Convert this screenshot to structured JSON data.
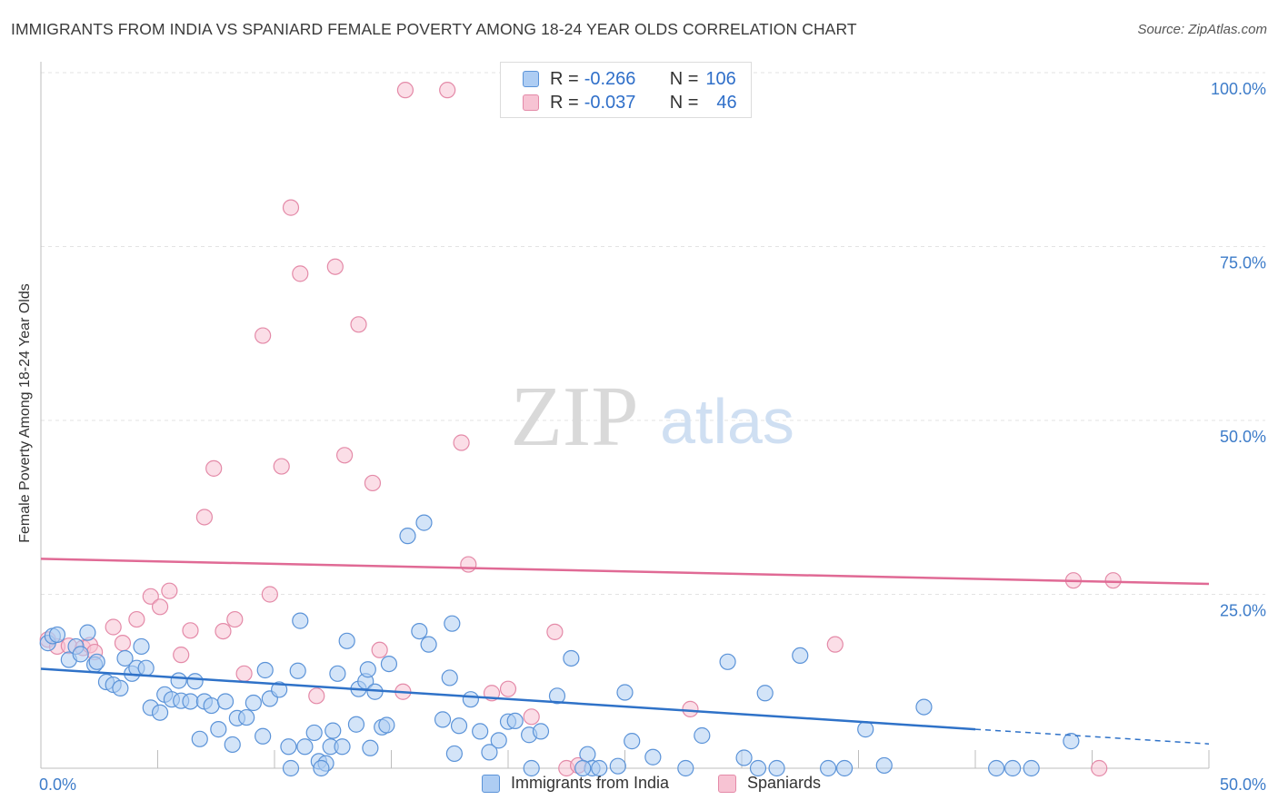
{
  "header": {
    "title": "IMMIGRANTS FROM INDIA VS SPANIARD FEMALE POVERTY AMONG 18-24 YEAR OLDS CORRELATION CHART",
    "source": "Source: ZipAtlas.com"
  },
  "watermark": {
    "zip": "ZIP",
    "atlas": "atlas"
  },
  "legend": {
    "rows": [
      {
        "r_label": "R =",
        "r_value": "-0.266",
        "n_label": "N =",
        "n_value": "106"
      },
      {
        "r_label": "R =",
        "r_value": "-0.037",
        "n_label": "N =",
        "n_value": "46"
      }
    ]
  },
  "colors": {
    "india_fill": "#aecdf3",
    "india_stroke": "#5b93d8",
    "india_line": "#2f72c8",
    "spain_fill": "#f7c3d3",
    "spain_stroke": "#e48aa8",
    "spain_line": "#e06a95",
    "tick_text": "#3d7cc9",
    "grid": "#e3e3e3"
  },
  "chart_data": {
    "type": "scatter",
    "title": "IMMIGRANTS FROM INDIA VS SPANIARD FEMALE POVERTY AMONG 18-24 YEAR OLDS CORRELATION CHART",
    "xlabel": "",
    "ylabel": "Female Poverty Among 18-24 Year Olds",
    "xlim": [
      0,
      50
    ],
    "ylim": [
      0,
      100
    ],
    "x_tick_labels": [
      "0.0%",
      "50.0%"
    ],
    "y_ticks": [
      25,
      50,
      75,
      100
    ],
    "y_tick_labels": [
      "25.0%",
      "50.0%",
      "75.0%",
      "100.0%"
    ],
    "grid": true,
    "legend_position": "top-center",
    "series": [
      {
        "name": "Immigrants from India",
        "R": -0.266,
        "N": 106,
        "trend": {
          "x0": 0,
          "y0": 14.3,
          "x1": 40,
          "y1": 5.6,
          "dashed_to_x": 50,
          "dashed_to_y": 3.5
        },
        "points": [
          [
            0.3,
            18
          ],
          [
            0.5,
            19
          ],
          [
            0.7,
            19.2
          ],
          [
            1.2,
            15.6
          ],
          [
            1.5,
            17.5
          ],
          [
            1.7,
            16.4
          ],
          [
            2.0,
            19.5
          ],
          [
            2.3,
            14.9
          ],
          [
            2.4,
            15.3
          ],
          [
            2.8,
            12.4
          ],
          [
            3.1,
            12.0
          ],
          [
            3.4,
            11.5
          ],
          [
            3.6,
            15.8
          ],
          [
            3.9,
            13.6
          ],
          [
            4.1,
            14.4
          ],
          [
            4.3,
            17.5
          ],
          [
            4.5,
            14.4
          ],
          [
            4.7,
            8.7
          ],
          [
            5.1,
            8.0
          ],
          [
            5.3,
            10.6
          ],
          [
            5.6,
            9.9
          ],
          [
            5.9,
            12.6
          ],
          [
            6.0,
            9.7
          ],
          [
            6.4,
            9.6
          ],
          [
            6.6,
            12.5
          ],
          [
            6.8,
            4.2
          ],
          [
            7.0,
            9.6
          ],
          [
            7.3,
            9.0
          ],
          [
            7.6,
            5.6
          ],
          [
            7.9,
            9.6
          ],
          [
            8.2,
            3.4
          ],
          [
            8.4,
            7.2
          ],
          [
            8.8,
            7.3
          ],
          [
            9.1,
            9.4
          ],
          [
            9.5,
            4.6
          ],
          [
            9.6,
            14.1
          ],
          [
            9.8,
            10.0
          ],
          [
            10.2,
            11.3
          ],
          [
            10.6,
            3.1
          ],
          [
            11.0,
            14.0
          ],
          [
            11.1,
            21.2
          ],
          [
            11.3,
            3.1
          ],
          [
            11.7,
            5.1
          ],
          [
            11.9,
            1.0
          ],
          [
            12.2,
            0.7
          ],
          [
            12.4,
            3.1
          ],
          [
            12.5,
            5.4
          ],
          [
            12.7,
            13.6
          ],
          [
            12.9,
            3.1
          ],
          [
            13.1,
            18.3
          ],
          [
            13.5,
            6.3
          ],
          [
            13.6,
            11.4
          ],
          [
            13.9,
            12.5
          ],
          [
            14.0,
            14.2
          ],
          [
            14.1,
            2.9
          ],
          [
            14.3,
            11.0
          ],
          [
            14.6,
            5.9
          ],
          [
            14.8,
            6.2
          ],
          [
            14.9,
            15.0
          ],
          [
            15.7,
            33.4
          ],
          [
            16.2,
            19.7
          ],
          [
            16.4,
            35.3
          ],
          [
            16.6,
            17.8
          ],
          [
            17.2,
            7.0
          ],
          [
            17.5,
            13.0
          ],
          [
            17.6,
            20.8
          ],
          [
            17.9,
            6.1
          ],
          [
            18.4,
            9.9
          ],
          [
            18.8,
            5.3
          ],
          [
            19.2,
            2.3
          ],
          [
            19.6,
            4.0
          ],
          [
            20.0,
            6.7
          ],
          [
            20.3,
            6.8
          ],
          [
            20.9,
            4.8
          ],
          [
            21.4,
            5.3
          ],
          [
            22.1,
            10.4
          ],
          [
            22.7,
            15.8
          ],
          [
            23.4,
            2.0
          ],
          [
            23.6,
            -0.3
          ],
          [
            23.9,
            -3.5
          ],
          [
            24.7,
            0.3
          ],
          [
            25.0,
            10.9
          ],
          [
            25.3,
            3.9
          ],
          [
            26.2,
            1.6
          ],
          [
            27.6,
            -4.2
          ],
          [
            28.3,
            4.7
          ],
          [
            29.4,
            15.3
          ],
          [
            30.1,
            1.5
          ],
          [
            30.7,
            -0.2
          ],
          [
            31.0,
            10.8
          ],
          [
            31.5,
            -4.4
          ],
          [
            32.5,
            16.2
          ],
          [
            33.7,
            -3.9
          ],
          [
            35.3,
            5.6
          ],
          [
            36.1,
            0.4
          ],
          [
            37.8,
            8.8
          ],
          [
            40.9,
            -3.1
          ],
          [
            42.4,
            -2.3
          ],
          [
            44.1,
            3.9
          ],
          [
            41.6,
            -5.8
          ],
          [
            34.4,
            -5.6
          ],
          [
            23.2,
            -5.1
          ],
          [
            21.0,
            -4.5
          ],
          [
            17.7,
            2.1
          ],
          [
            12.0,
            -1.9
          ],
          [
            10.7,
            -2.6
          ]
        ]
      },
      {
        "name": "Spaniards",
        "R": -0.037,
        "N": 46,
        "trend": {
          "x0": 0,
          "y0": 30.1,
          "x1": 50,
          "y1": 26.5
        },
        "points": [
          [
            0.3,
            18.5
          ],
          [
            0.7,
            17.5
          ],
          [
            1.2,
            17.6
          ],
          [
            1.8,
            17.3
          ],
          [
            2.1,
            17.7
          ],
          [
            2.3,
            16.7
          ],
          [
            3.1,
            20.3
          ],
          [
            3.5,
            18.0
          ],
          [
            4.1,
            21.4
          ],
          [
            4.7,
            24.7
          ],
          [
            5.1,
            23.2
          ],
          [
            5.5,
            25.5
          ],
          [
            6.0,
            16.3
          ],
          [
            6.4,
            19.8
          ],
          [
            7.0,
            36.1
          ],
          [
            7.4,
            43.1
          ],
          [
            7.8,
            19.7
          ],
          [
            8.3,
            21.4
          ],
          [
            8.7,
            13.6
          ],
          [
            9.5,
            62.2
          ],
          [
            9.8,
            25.0
          ],
          [
            10.3,
            43.4
          ],
          [
            10.7,
            80.6
          ],
          [
            11.1,
            71.1
          ],
          [
            11.8,
            10.4
          ],
          [
            12.6,
            72.1
          ],
          [
            13.0,
            45.0
          ],
          [
            13.6,
            63.8
          ],
          [
            14.2,
            41.0
          ],
          [
            14.5,
            17.0
          ],
          [
            15.5,
            11.0
          ],
          [
            15.6,
            97.5
          ],
          [
            17.4,
            97.5
          ],
          [
            18.0,
            46.8
          ],
          [
            18.3,
            29.3
          ],
          [
            19.3,
            10.8
          ],
          [
            20.0,
            11.4
          ],
          [
            21.0,
            7.4
          ],
          [
            22.0,
            19.6
          ],
          [
            22.5,
            -0.6
          ],
          [
            23.0,
            0.4
          ],
          [
            27.8,
            8.5
          ],
          [
            34.0,
            17.8
          ],
          [
            44.2,
            27.0
          ],
          [
            45.9,
            27.0
          ],
          [
            45.3,
            0.0
          ]
        ]
      }
    ]
  },
  "bottom_legend": {
    "india": "Immigrants from India",
    "spain": "Spaniards"
  }
}
